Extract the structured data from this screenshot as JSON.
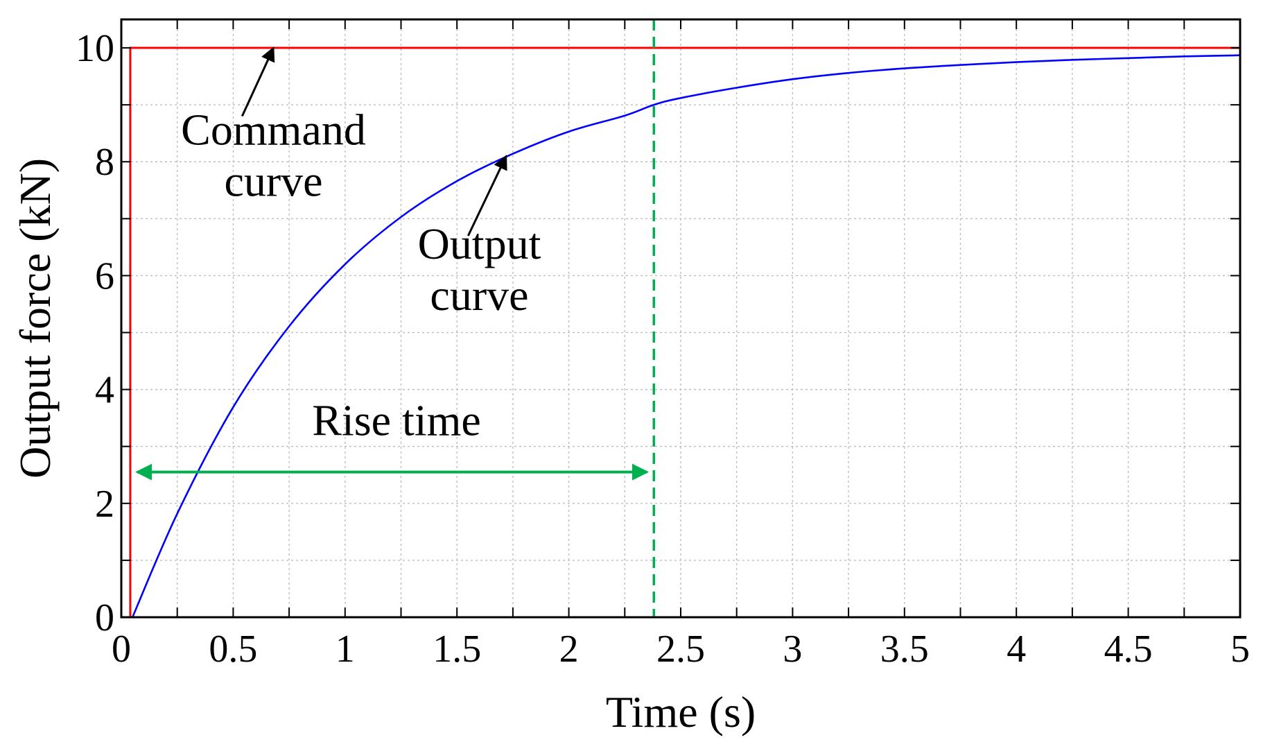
{
  "chart_data": {
    "type": "line",
    "xlabel": "Time (s)",
    "ylabel": "Output force (kN)",
    "xlim": [
      0,
      5
    ],
    "ylim": [
      0,
      10.5
    ],
    "grid": true,
    "x_ticks": [
      0,
      0.5,
      1,
      1.5,
      2,
      2.5,
      3,
      3.5,
      4,
      4.5,
      5
    ],
    "x_tick_labels": [
      "0",
      "0.5",
      "1",
      "1.5",
      "2",
      "2.5",
      "3",
      "3.5",
      "4",
      "4.5",
      "5"
    ],
    "y_ticks": [
      0,
      2,
      4,
      6,
      8,
      10
    ],
    "y_tick_labels": [
      "0",
      "2",
      "4",
      "6",
      "8",
      "10"
    ],
    "x_minor_step": 0.25,
    "y_minor_step": 1,
    "series": [
      {
        "name": "Command curve",
        "color": "#ff0000",
        "x": [
          0.04,
          0.04,
          5
        ],
        "y": [
          0,
          10,
          10
        ]
      },
      {
        "name": "Output curve",
        "color": "#0000ff",
        "x": [
          0.05,
          0.25,
          0.5,
          0.75,
          1.0,
          1.25,
          1.5,
          1.75,
          2.0,
          2.25,
          2.38,
          2.5,
          2.75,
          3.0,
          3.25,
          3.5,
          3.75,
          4.0,
          4.25,
          4.5,
          4.75,
          5.0
        ],
        "y": [
          0.0,
          1.82,
          3.69,
          5.11,
          6.2,
          7.03,
          7.66,
          8.14,
          8.53,
          8.81,
          9.0,
          9.12,
          9.3,
          9.45,
          9.56,
          9.64,
          9.7,
          9.75,
          9.79,
          9.82,
          9.85,
          9.87
        ]
      }
    ],
    "rise_time_marker": {
      "x": 2.38,
      "color": "#00b050"
    },
    "annotations": [
      {
        "id": "command",
        "lines": [
          "Command",
          "curve"
        ],
        "text_x": 0.68,
        "text_y": 8.3,
        "arrow_from": [
          0.54,
          8.8
        ],
        "arrow_to": [
          0.68,
          10.0
        ]
      },
      {
        "id": "output",
        "lines": [
          "Output",
          "curve"
        ],
        "text_x": 1.6,
        "text_y": 6.3,
        "arrow_from": [
          1.55,
          6.7
        ],
        "arrow_to": [
          1.72,
          8.1
        ]
      },
      {
        "id": "rise",
        "lines": [
          "Rise time"
        ],
        "text_x": 1.23,
        "text_y": 3.2,
        "arrow_from": [
          0.07,
          2.55
        ],
        "arrow_to": [
          2.35,
          2.55
        ]
      }
    ]
  }
}
